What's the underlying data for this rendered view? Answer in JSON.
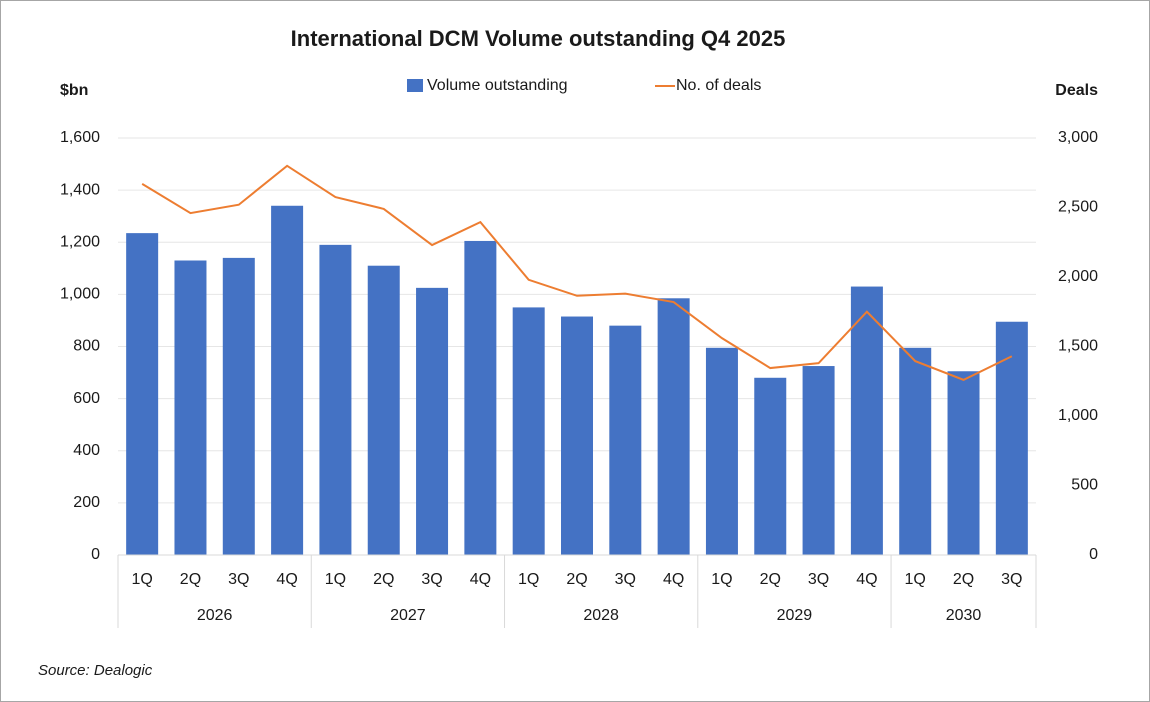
{
  "chart_data": {
    "type": "bar",
    "title": "International DCM Volume outstanding Q4 2025",
    "y_label": "$bn",
    "y2_label": "Deals",
    "source": "Source: Dealogic",
    "category_groups": [
      {
        "name": "2026",
        "categories": [
          "1Q",
          "2Q",
          "3Q",
          "4Q"
        ]
      },
      {
        "name": "2027",
        "categories": [
          "1Q",
          "2Q",
          "3Q",
          "4Q"
        ]
      },
      {
        "name": "2028",
        "categories": [
          "1Q",
          "2Q",
          "3Q",
          "4Q"
        ]
      },
      {
        "name": "2029",
        "categories": [
          "1Q",
          "2Q",
          "3Q",
          "4Q"
        ]
      },
      {
        "name": "2030",
        "categories": [
          "1Q",
          "2Q",
          "3Q"
        ]
      }
    ],
    "series": [
      {
        "name": "Volume outstanding",
        "type": "bar",
        "color": "#4472c4",
        "values": [
          1235,
          1130,
          1140,
          1340,
          1190,
          1110,
          1025,
          1205,
          950,
          915,
          880,
          985,
          795,
          680,
          725,
          1030,
          795,
          705,
          895
        ]
      },
      {
        "name": "No. of deals",
        "type": "line",
        "axis": "y2",
        "color": "#ed7d31",
        "values": [
          2670,
          2460,
          2520,
          2800,
          2575,
          2490,
          2230,
          2395,
          1980,
          1865,
          1880,
          1820,
          1560,
          1345,
          1380,
          1750,
          1395,
          1260,
          1430
        ]
      }
    ],
    "ylim": [
      0,
      1600
    ],
    "yticks": [
      0,
      200,
      400,
      600,
      800,
      {
        "value": 1000,
        "label": "1,000"
      },
      {
        "value": 1200,
        "label": "1,200"
      },
      {
        "value": 1400,
        "label": "1,400"
      },
      {
        "value": 1600,
        "label": "1,600"
      }
    ],
    "y2lim": [
      0,
      3000
    ],
    "y2ticks": [
      0,
      500,
      {
        "value": 1000,
        "label": "1,000"
      },
      {
        "value": 1500,
        "label": "1,500"
      },
      {
        "value": 2000,
        "label": "2,000"
      },
      {
        "value": 2500,
        "label": "2,500"
      },
      {
        "value": 3000,
        "label": "3,000"
      }
    ],
    "grid": true,
    "legend": "top"
  }
}
